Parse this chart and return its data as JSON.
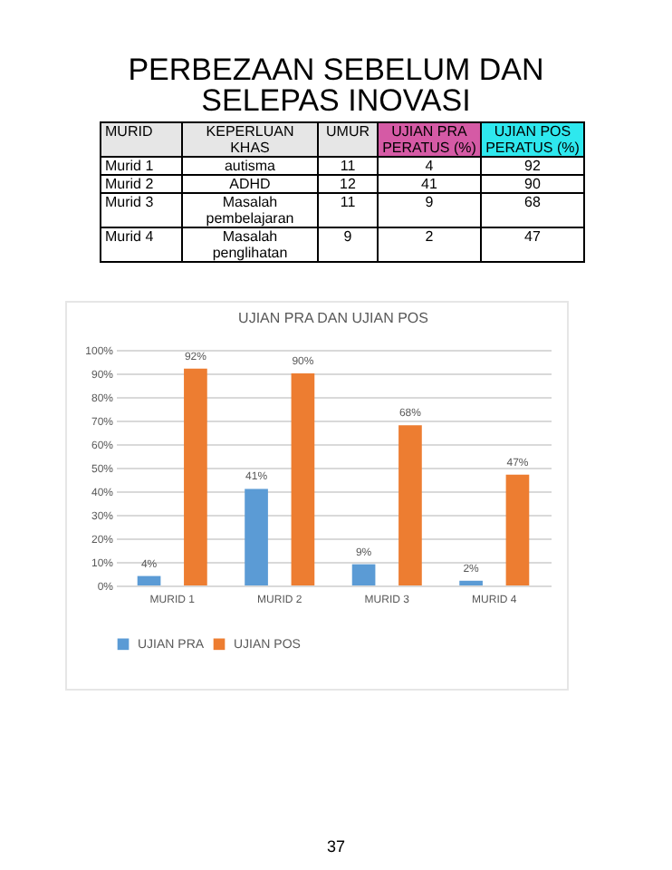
{
  "chart_data": {
    "type": "bar",
    "title": "UJIAN PRA DAN UJIAN POS",
    "categories": [
      "MURID 1",
      "MURID 2",
      "MURID 3",
      "MURID 4"
    ],
    "series": [
      {
        "name": "UJIAN PRA",
        "color": "#5b9bd5",
        "values": [
          4,
          41,
          9,
          2
        ],
        "value_labels": [
          "4%",
          "41%",
          "9%",
          "2%"
        ]
      },
      {
        "name": "UJIAN POS",
        "color": "#ed7d31",
        "values": [
          92,
          90,
          68,
          47
        ],
        "value_labels": [
          "92%",
          "90%",
          "68%",
          "47%"
        ]
      }
    ],
    "ylim": [
      0,
      100
    ],
    "yticks": [
      {
        "value": 0,
        "label": "0%"
      },
      {
        "value": 10,
        "label": "10%"
      },
      {
        "value": 20,
        "label": "20%"
      },
      {
        "value": 30,
        "label": "30%"
      },
      {
        "value": 40,
        "label": "40%"
      },
      {
        "value": 50,
        "label": "50%"
      },
      {
        "value": 60,
        "label": "60%"
      },
      {
        "value": 70,
        "label": "70%"
      },
      {
        "value": 80,
        "label": "80%"
      },
      {
        "value": 90,
        "label": "90%"
      },
      {
        "value": 100,
        "label": "100%"
      }
    ],
    "grid": "y",
    "legend": "bottom",
    "annotations": [
      "PERBEZAAN SEBELUM DAN SELEPAS INOVASI",
      "MURID",
      "KEPERLUAN KHAS",
      "UMUR",
      "UJIAN PRA PERATUS (%)",
      "UJIAN POS PERATUS (%)",
      "Murid 1",
      "autisma",
      "11",
      "4",
      "92",
      "Murid 2",
      "ADHD",
      "12",
      "41",
      "90",
      "Murid 3",
      "Masalah pembelajaran",
      "11",
      "9",
      "68",
      "Murid 4",
      "Masalah penglihatan",
      "9",
      "2",
      "47",
      "37"
    ]
  }
}
